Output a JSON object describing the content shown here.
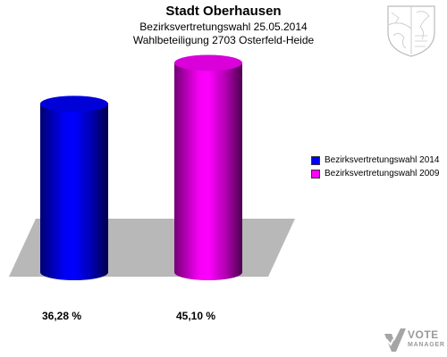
{
  "header": {
    "title": "Stadt Oberhausen",
    "subtitle1": "Bezirksvertretungswahl 25.05.2014",
    "subtitle2": "Wahlbeteiligung 2703 Osterfeld-Heide"
  },
  "chart_data": {
    "type": "bar",
    "categories": [
      "Bezirksvertretungswahl 2014",
      "Bezirksvertretungswahl 2009"
    ],
    "values": [
      36.28,
      45.1
    ],
    "value_labels": [
      "36,28 %",
      "45,10 %"
    ],
    "colors": [
      "#0000ff",
      "#ff00ff"
    ],
    "legend": [
      {
        "label": "Bezirksvertretungswahl 2014",
        "color": "#0000ff"
      },
      {
        "label": "Bezirksvertretungswahl 2009",
        "color": "#ff00ff"
      }
    ],
    "legend_position": "right",
    "grid": false,
    "style": "3d-cylinder"
  },
  "branding": {
    "crest_icon": "coat-of-arms-icon",
    "logo_line1": "VOTE",
    "logo_line2": "MANAGER"
  }
}
